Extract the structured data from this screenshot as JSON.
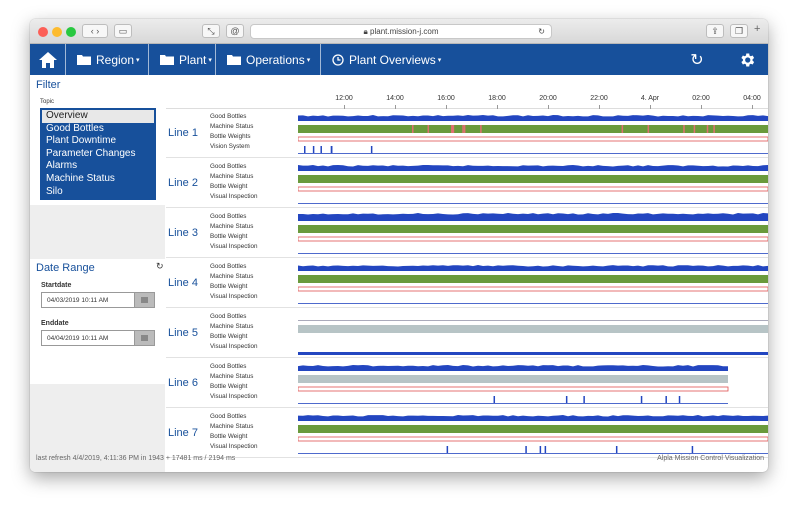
{
  "browser": {
    "url": "plant.mission-j.com"
  },
  "nav": {
    "home_icon": "home-icon",
    "items": [
      {
        "label": "Region",
        "icon": "folder-icon"
      },
      {
        "label": "Plant",
        "icon": "folder-icon"
      },
      {
        "label": "Operations",
        "icon": "folder-icon"
      },
      {
        "label": "Plant Overviews",
        "icon": "clock-icon"
      }
    ]
  },
  "filter": {
    "title": "Filter",
    "topic_label": "Topic",
    "topics": [
      "Overview",
      "Good Bottles",
      "Plant Downtime",
      "Parameter Changes",
      "Alarms",
      "Machine Status",
      "Silo"
    ],
    "selected": "Overview"
  },
  "date_range": {
    "title": "Date Range",
    "start_label": "Startdate",
    "start_value": "04/03/2019 10:11 AM",
    "end_label": "Enddate",
    "end_value": "04/04/2019 10:11 AM"
  },
  "timeline": {
    "ticks": [
      "12:00",
      "14:00",
      "16:00",
      "18:00",
      "20:00",
      "22:00",
      "4. Apr",
      "02:00",
      "04:00"
    ]
  },
  "lines": [
    {
      "name": "Line 1",
      "metrics": [
        "Good Bottles",
        "Machine Status",
        "Bottle Weights",
        "Vision System"
      ]
    },
    {
      "name": "Line 2",
      "metrics": [
        "Good Bottles",
        "Machine Status",
        "Bottle Weight",
        "Visual Inspection"
      ]
    },
    {
      "name": "Line 3",
      "metrics": [
        "Good Bottles",
        "Machine Status",
        "Bottle Weight",
        "Visual Inspection"
      ]
    },
    {
      "name": "Line 4",
      "metrics": [
        "Good Bottles",
        "Machine Status",
        "Bottle Weight",
        "Visual Inspection"
      ]
    },
    {
      "name": "Line 5",
      "metrics": [
        "Good Bottles",
        "Machine Status",
        "Bottle Weight",
        "Visual Inspection"
      ]
    },
    {
      "name": "Line 6",
      "metrics": [
        "Good Bottles",
        "Machine Status",
        "Bottle Weight",
        "Visual Inspection"
      ]
    },
    {
      "name": "Line 7",
      "metrics": [
        "Good Bottles",
        "Machine Status",
        "Bottle Weight",
        "Visual Inspection"
      ]
    }
  ],
  "footer": {
    "refresh": "last refresh 4/4/2019, 4:11:36 PM in 1943 + 17481 ms / 2194 ms",
    "brand": "Alpla Mission Control Visualization"
  },
  "colors": {
    "nav": "#17509b",
    "good": "#2346c0",
    "status": "#6a9a3c",
    "status_idle": "#b7c4c6",
    "weight": "#e05050",
    "inspection": "#2346c0"
  }
}
